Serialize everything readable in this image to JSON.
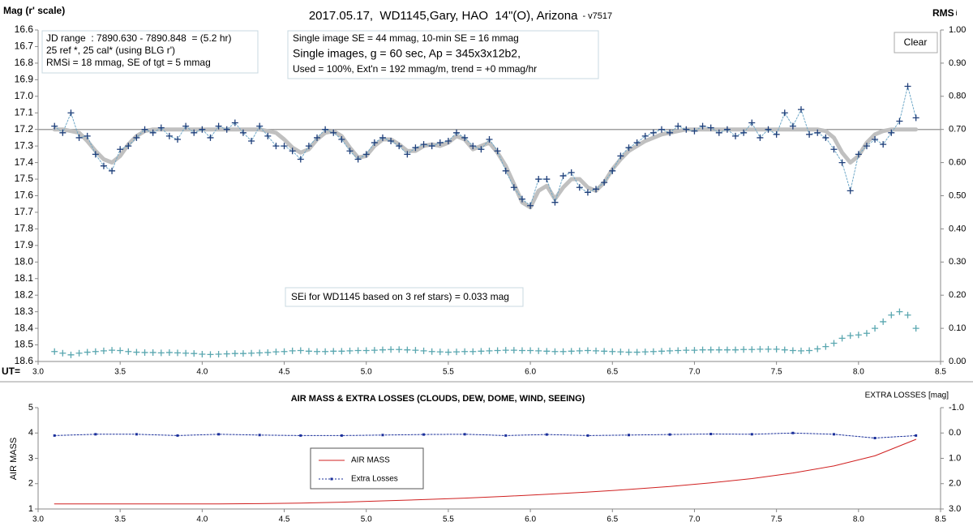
{
  "chart_data": [
    {
      "type": "line",
      "title": "2017.05.17,  WD1145,Gary, HAO  14\"(O), Arizona",
      "subtitle": "- v7517",
      "y_label": "Mag (r' scale)",
      "y2_label": "RMS",
      "y2_label_sub": "i",
      "x_label": "UT=",
      "button": "Clear",
      "annotations": [
        {
          "lines": [
            "JD range  : 7890.630 - 7890.848  = (5.2 hr)",
            "25 ref *, 25 cal* (using BLG r')",
            "RMSi = 18 mmag, SE of tgt = 5 mmag"
          ]
        },
        {
          "lines": [
            "Single image SE = 44 mmag, 10-min SE = 16 mmag",
            "Single images, g = 60 sec, Ap = 345x3x12b2,",
            "Used = 100%, Ext'n = 192 mmag/m, trend = +0 mmag/hr"
          ]
        },
        {
          "lines": [
            "SEi for WD1145 based on 3 ref stars) = 0.033 mag"
          ]
        }
      ],
      "xlim": [
        3.0,
        8.5
      ],
      "xticks": [
        {
          "value": 3.0,
          "label": "3.0"
        },
        3.5,
        {
          "value": 4.0,
          "label": "4.0"
        },
        4.5,
        {
          "value": 5.0,
          "label": "5.0"
        },
        5.5,
        {
          "value": 6.0,
          "label": "6.0"
        },
        6.5,
        {
          "value": 7.0,
          "label": "7.0"
        },
        7.5,
        {
          "value": 8.0,
          "label": "8.0"
        },
        8.5
      ],
      "ylim": [
        18.6,
        16.6
      ],
      "yticks": [
        16.6,
        16.7,
        16.8,
        16.9,
        {
          "value": 17.0,
          "label": "17.0"
        },
        17.1,
        17.2,
        17.3,
        17.4,
        17.5,
        17.6,
        17.7,
        17.8,
        17.9,
        {
          "value": 18.0,
          "label": "18.0"
        },
        18.1,
        18.2,
        18.3,
        18.4,
        18.5,
        18.6
      ],
      "y2lim": [
        0,
        1
      ],
      "y2ticks": [
        {
          "value": 0,
          "label": "0.00"
        },
        {
          "value": 0.1,
          "label": "0.10"
        },
        {
          "value": 0.2,
          "label": "0.20"
        },
        {
          "value": 0.3,
          "label": "0.30"
        },
        {
          "value": 0.4,
          "label": "0.40"
        },
        {
          "value": 0.5,
          "label": "0.50"
        },
        {
          "value": 0.6,
          "label": "0.60"
        },
        {
          "value": 0.7,
          "label": "0.70"
        },
        {
          "value": 0.8,
          "label": "0.80"
        },
        {
          "value": 0.9,
          "label": "0.90"
        },
        {
          "value": 1,
          "label": "1.00"
        }
      ],
      "baseline": 17.2,
      "baseline_color": "#a0a0a0",
      "x": [
        3.1,
        3.15,
        3.2,
        3.25,
        3.3,
        3.35,
        3.4,
        3.45,
        3.5,
        3.55,
        3.6,
        3.65,
        3.7,
        3.75,
        3.8,
        3.85,
        3.9,
        3.95,
        4.0,
        4.05,
        4.1,
        4.15,
        4.2,
        4.25,
        4.3,
        4.35,
        4.4,
        4.45,
        4.5,
        4.55,
        4.6,
        4.65,
        4.7,
        4.75,
        4.8,
        4.85,
        4.9,
        4.95,
        5.0,
        5.05,
        5.1,
        5.15,
        5.2,
        5.25,
        5.3,
        5.35,
        5.4,
        5.45,
        5.5,
        5.55,
        5.6,
        5.65,
        5.7,
        5.75,
        5.8,
        5.85,
        5.9,
        5.95,
        6.0,
        6.05,
        6.1,
        6.15,
        6.2,
        6.25,
        6.3,
        6.35,
        6.4,
        6.45,
        6.5,
        6.55,
        6.6,
        6.65,
        6.7,
        6.75,
        6.8,
        6.85,
        6.9,
        6.95,
        7.0,
        7.05,
        7.1,
        7.15,
        7.2,
        7.25,
        7.3,
        7.35,
        7.4,
        7.45,
        7.5,
        7.55,
        7.6,
        7.65,
        7.7,
        7.75,
        7.8,
        7.85,
        7.9,
        7.95,
        8.0,
        8.05,
        8.1,
        8.15,
        8.2,
        8.25,
        8.3,
        8.35
      ],
      "series": [
        {
          "color": "#c0c0c0",
          "line": true,
          "line_width": 5,
          "values": [
            17.2,
            17.2,
            17.21,
            17.22,
            17.27,
            17.33,
            17.38,
            17.4,
            17.36,
            17.29,
            17.24,
            17.21,
            17.2,
            17.2,
            17.2,
            17.2,
            17.2,
            17.2,
            17.2,
            17.2,
            17.2,
            17.2,
            17.2,
            17.2,
            17.2,
            17.2,
            17.21,
            17.22,
            17.26,
            17.31,
            17.34,
            17.32,
            17.26,
            17.22,
            17.21,
            17.24,
            17.31,
            17.37,
            17.36,
            17.3,
            17.26,
            17.26,
            17.29,
            17.33,
            17.33,
            17.3,
            17.29,
            17.3,
            17.28,
            17.24,
            17.26,
            17.32,
            17.3,
            17.28,
            17.34,
            17.42,
            17.53,
            17.64,
            17.67,
            17.57,
            17.54,
            17.62,
            17.55,
            17.5,
            17.5,
            17.55,
            17.57,
            17.52,
            17.44,
            17.38,
            17.33,
            17.3,
            17.27,
            17.25,
            17.23,
            17.22,
            17.21,
            17.2,
            17.2,
            17.2,
            17.2,
            17.2,
            17.2,
            17.2,
            17.2,
            17.2,
            17.2,
            17.2,
            17.2,
            17.2,
            17.2,
            17.2,
            17.2,
            17.2,
            17.21,
            17.25,
            17.34,
            17.4,
            17.36,
            17.28,
            17.23,
            17.21,
            17.2,
            17.2,
            17.2,
            17.2
          ]
        },
        {
          "color": "#1f3f7a",
          "line_color": "#6fa8c8",
          "line": true,
          "dash": true,
          "marker": "plus",
          "values": [
            17.18,
            17.22,
            17.1,
            17.25,
            17.24,
            17.35,
            17.42,
            17.45,
            17.32,
            17.3,
            17.25,
            17.2,
            17.22,
            17.19,
            17.24,
            17.26,
            17.18,
            17.22,
            17.2,
            17.25,
            17.18,
            17.2,
            17.16,
            17.22,
            17.27,
            17.18,
            17.24,
            17.3,
            17.3,
            17.33,
            17.38,
            17.3,
            17.25,
            17.2,
            17.22,
            17.26,
            17.33,
            17.38,
            17.35,
            17.28,
            17.25,
            17.27,
            17.3,
            17.35,
            17.31,
            17.29,
            17.3,
            17.28,
            17.27,
            17.22,
            17.25,
            17.3,
            17.32,
            17.26,
            17.33,
            17.45,
            17.55,
            17.62,
            17.66,
            17.5,
            17.5,
            17.64,
            17.48,
            17.46,
            17.55,
            17.58,
            17.56,
            17.52,
            17.45,
            17.36,
            17.31,
            17.28,
            17.24,
            17.22,
            17.2,
            17.22,
            17.18,
            17.2,
            17.21,
            17.18,
            17.19,
            17.22,
            17.2,
            17.24,
            17.22,
            17.16,
            17.25,
            17.2,
            17.23,
            17.1,
            17.18,
            17.08,
            17.23,
            17.22,
            17.25,
            17.32,
            17.4,
            17.57,
            17.35,
            17.3,
            17.26,
            17.29,
            17.22,
            17.15,
            16.94,
            17.13
          ]
        },
        {
          "color": "#5aa7b0",
          "marker": "plus",
          "axis": "y2",
          "values": [
            0.03,
            0.025,
            0.02,
            0.025,
            0.028,
            0.03,
            0.032,
            0.034,
            0.033,
            0.03,
            0.028,
            0.027,
            0.027,
            0.026,
            0.027,
            0.026,
            0.025,
            0.024,
            0.022,
            0.021,
            0.022,
            0.023,
            0.024,
            0.024,
            0.025,
            0.026,
            0.027,
            0.029,
            0.03,
            0.032,
            0.033,
            0.031,
            0.03,
            0.03,
            0.031,
            0.031,
            0.032,
            0.033,
            0.033,
            0.034,
            0.035,
            0.036,
            0.036,
            0.035,
            0.034,
            0.032,
            0.03,
            0.029,
            0.028,
            0.029,
            0.03,
            0.03,
            0.031,
            0.032,
            0.033,
            0.034,
            0.034,
            0.033,
            0.033,
            0.032,
            0.031,
            0.03,
            0.03,
            0.031,
            0.032,
            0.033,
            0.032,
            0.031,
            0.03,
            0.029,
            0.028,
            0.028,
            0.029,
            0.03,
            0.031,
            0.032,
            0.033,
            0.034,
            0.034,
            0.035,
            0.035,
            0.035,
            0.035,
            0.035,
            0.036,
            0.036,
            0.037,
            0.037,
            0.037,
            0.035,
            0.033,
            0.032,
            0.033,
            0.038,
            0.045,
            0.055,
            0.07,
            0.078,
            0.08,
            0.085,
            0.1,
            0.12,
            0.14,
            0.15,
            0.14,
            0.1
          ]
        }
      ]
    },
    {
      "type": "line",
      "title": "AIR MASS & EXTRA LOSSES (CLOUDS, DEW, DOME, WIND, SEEING)",
      "y_label": "AIR MASS",
      "y2_label": "EXTRA LOSSES [mag]",
      "xlim": [
        3.0,
        8.5
      ],
      "xticks": [
        {
          "value": 3.0,
          "label": "3.0"
        },
        3.5,
        {
          "value": 4.0,
          "label": "4.0"
        },
        4.5,
        {
          "value": 5.0,
          "label": "5.0"
        },
        5.5,
        {
          "value": 6.0,
          "label": "6.0"
        },
        6.5,
        {
          "value": 7.0,
          "label": "7.0"
        },
        7.5,
        {
          "value": 8.0,
          "label": "8.0"
        },
        8.5
      ],
      "ylim": [
        1,
        5
      ],
      "yticks": [
        1,
        2,
        3,
        4,
        5
      ],
      "y2lim": [
        3,
        -1
      ],
      "y2ticks": [
        {
          "value": -1,
          "label": "-1.0"
        },
        {
          "value": 0,
          "label": "0.0"
        },
        {
          "value": 1,
          "label": "1.0"
        },
        {
          "value": 2,
          "label": "2.0"
        },
        {
          "value": 3,
          "label": "3.0"
        }
      ],
      "x": [
        3.1,
        3.35,
        3.6,
        3.85,
        4.1,
        4.35,
        4.6,
        4.85,
        5.1,
        5.35,
        5.6,
        5.85,
        6.1,
        6.35,
        6.6,
        6.85,
        7.1,
        7.35,
        7.6,
        7.85,
        8.1,
        8.35
      ],
      "series": [
        {
          "name": "AIR MASS",
          "color": "#d02020",
          "line": true,
          "values": [
            1.2,
            1.2,
            1.2,
            1.2,
            1.2,
            1.21,
            1.23,
            1.27,
            1.32,
            1.37,
            1.43,
            1.5,
            1.58,
            1.67,
            1.77,
            1.89,
            2.03,
            2.2,
            2.42,
            2.7,
            3.1,
            3.75
          ]
        },
        {
          "name": "Extra Losses",
          "color": "#1a2f9a",
          "line": true,
          "dash": true,
          "marker": "dot",
          "axis": "y2",
          "values": [
            0.1,
            0.05,
            0.05,
            0.1,
            0.05,
            0.08,
            0.1,
            0.1,
            0.08,
            0.06,
            0.05,
            0.1,
            0.06,
            0.1,
            0.08,
            0.06,
            0.04,
            0.05,
            0.0,
            0.05,
            0.2,
            0.1
          ]
        }
      ]
    }
  ]
}
